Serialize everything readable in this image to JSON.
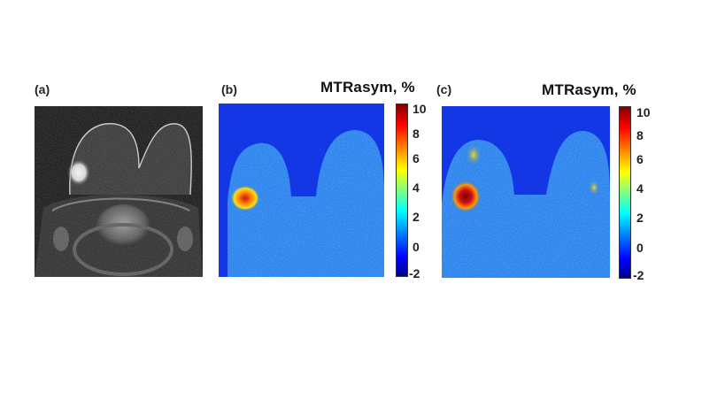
{
  "panels": [
    {
      "label": "(a)"
    },
    {
      "label": "(b)",
      "colorbar_title": "MTRasym, %"
    },
    {
      "label": "(c)",
      "colorbar_title": "MTRasym, %"
    }
  ],
  "colorbar_ticks": [
    "10",
    "8",
    "6",
    "4",
    "2",
    "0",
    "-2"
  ],
  "colors": {
    "background_blue": "#1437e6",
    "hotspot_red": "#c81414",
    "colormap": "jet"
  }
}
